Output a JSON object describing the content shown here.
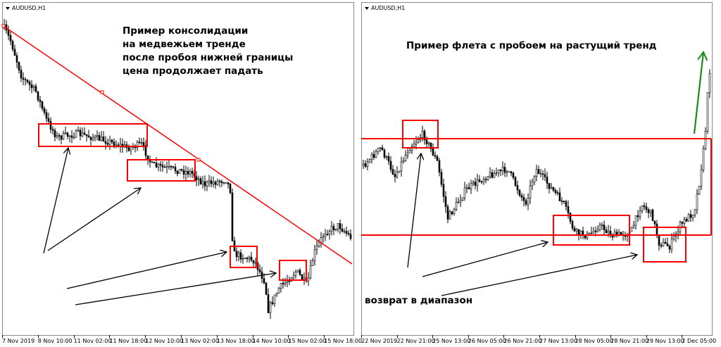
{
  "chart_data": [
    {
      "type": "candlestick",
      "symbol": "AUDUSD,H1",
      "x_tick_labels": [
        "7 Nov 2019",
        "8 Nov 10:00",
        "11 Nov 02:00",
        "11 Nov 18:00",
        "12 Nov 10:00",
        "13 Nov 02:00",
        "13 Nov 18:00",
        "14 Nov 10:00",
        "15 Nov 02:00",
        "15 Nov 18:00"
      ],
      "annotation_lines": [
        "Пример консолидации",
        "на медвежьем тренде",
        "после пробоя нижней границы",
        "цена продолжает падать"
      ],
      "trend": "down",
      "drawings": {
        "trendline_color": "#ff0000",
        "box_color": "#ff0000",
        "box_count": 4,
        "arrow_color": "#000000",
        "arrow_count": 4
      }
    },
    {
      "type": "candlestick",
      "symbol": "AUDUSD,H1",
      "x_tick_labels": [
        "22 Nov 2019",
        "22 Nov 21:00",
        "25 Nov 13:00",
        "26 Nov 05:00",
        "26 Nov 21:00",
        "27 Nov 13:00",
        "28 Nov 05:00",
        "28 Nov 21:00",
        "29 Nov 13:00",
        "2 Dec 05:00"
      ],
      "title": "Пример флета с пробоем на растущий тренд",
      "annotation": "возврат в диапазон",
      "trend": "flat, breakout up",
      "drawings": {
        "range_color": "#ff0000",
        "box_count": 3,
        "arrow_color": "#000000",
        "arrow_count": 3,
        "breakout_arrow_color": "#1a8a1a"
      }
    }
  ]
}
